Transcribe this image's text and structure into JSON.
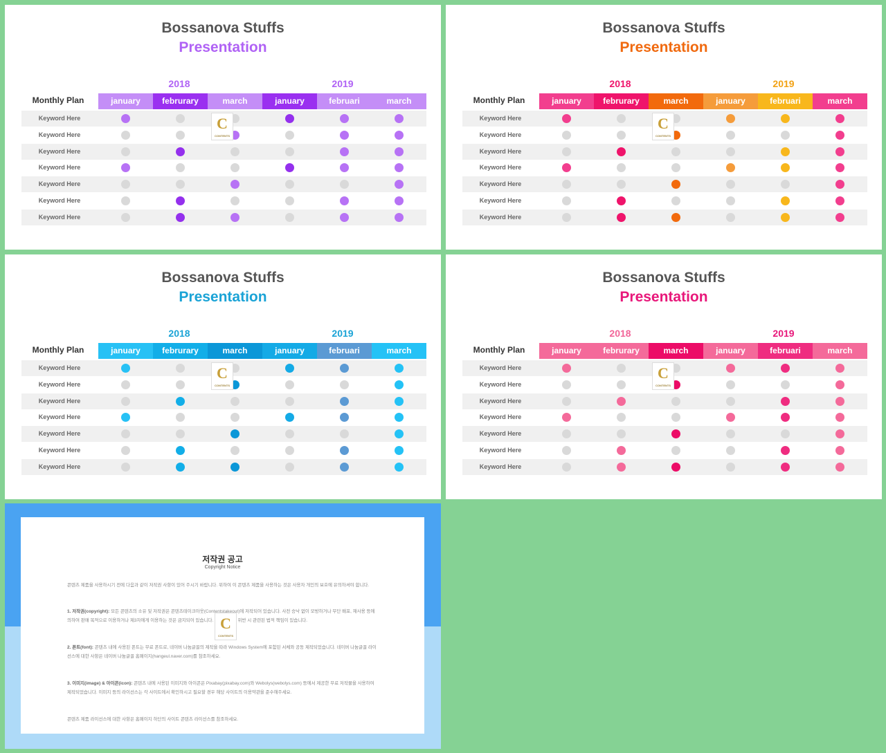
{
  "colors": {
    "bg": "#85d294",
    "gray_dot": "#d9d9d9",
    "purple": {
      "accent": "#b062f5",
      "hdr": [
        "#c48ef7",
        "#9a30f0",
        "#c48ef7",
        "#9a30f0",
        "#c48ef7",
        "#c48ef7"
      ],
      "dot_a": "#b772f5",
      "dot_b": "#9430ed"
    },
    "orange": {
      "accent": "#f0690e",
      "hdr": [
        "#f23e8e",
        "#ef146b",
        "#f26a0d",
        "#f59c3b",
        "#f8b71c",
        "#f23e8e"
      ],
      "year2018": "#ef146b",
      "year2019": "#f2a214"
    },
    "blue": {
      "accent": "#1aa3d6",
      "hdr": [
        "#27c1f5",
        "#12aee8",
        "#0b97d8",
        "#14aae6",
        "#5b9ad4",
        "#24c2f6"
      ]
    },
    "pink": {
      "accent": "#e8177a",
      "hdr": [
        "#f46a9a",
        "#f46a9a",
        "#ec0c67",
        "#f46a9a",
        "#ef2c80",
        "#f46a9a"
      ],
      "year2018": "#f26599",
      "year2019": "#e8177a"
    }
  },
  "slides": [
    {
      "id": "purple",
      "title": "Bossanova Stuffs",
      "subtitle": "Presentation",
      "year1": "2018",
      "year2": "2019",
      "monthly_plan": "Monthly Plan",
      "months": [
        "january",
        "februrary",
        "march",
        "january",
        "februari",
        "march"
      ],
      "rows": [
        {
          "label": "Keyword Here",
          "dots": [
            "a",
            "g",
            "g",
            "b",
            "a",
            "a"
          ]
        },
        {
          "label": "Keyword Here",
          "dots": [
            "g",
            "g",
            "a",
            "g",
            "a",
            "a"
          ]
        },
        {
          "label": "Keyword Here",
          "dots": [
            "g",
            "b",
            "g",
            "g",
            "a",
            "a"
          ]
        },
        {
          "label": "Keyword Here",
          "dots": [
            "a",
            "g",
            "g",
            "b",
            "a",
            "a"
          ]
        },
        {
          "label": "Keyword Here",
          "dots": [
            "g",
            "g",
            "a",
            "g",
            "g",
            "a"
          ]
        },
        {
          "label": "Keyword Here",
          "dots": [
            "g",
            "b",
            "g",
            "g",
            "a",
            "a"
          ]
        },
        {
          "label": "Keyword Here",
          "dots": [
            "g",
            "b",
            "a",
            "g",
            "a",
            "a"
          ]
        }
      ]
    },
    {
      "id": "orange",
      "title": "Bossanova Stuffs",
      "subtitle": "Presentation",
      "year1": "2018",
      "year2": "2019",
      "monthly_plan": "Monthly Plan",
      "months": [
        "january",
        "februrary",
        "march",
        "january",
        "februari",
        "march"
      ],
      "rows": [
        {
          "label": "Keyword Here",
          "dots": [
            "c0",
            "g",
            "g",
            "c3",
            "c4",
            "c5"
          ]
        },
        {
          "label": "Keyword Here",
          "dots": [
            "g",
            "g",
            "c2",
            "g",
            "g",
            "c5"
          ]
        },
        {
          "label": "Keyword Here",
          "dots": [
            "g",
            "c1",
            "g",
            "g",
            "c4",
            "c5"
          ]
        },
        {
          "label": "Keyword Here",
          "dots": [
            "c0",
            "g",
            "g",
            "c3",
            "c4",
            "c5"
          ]
        },
        {
          "label": "Keyword Here",
          "dots": [
            "g",
            "g",
            "c2",
            "g",
            "g",
            "c5"
          ]
        },
        {
          "label": "Keyword Here",
          "dots": [
            "g",
            "c1",
            "g",
            "g",
            "c4",
            "c5"
          ]
        },
        {
          "label": "Keyword Here",
          "dots": [
            "g",
            "c1",
            "c2",
            "g",
            "c4",
            "c5"
          ]
        }
      ]
    },
    {
      "id": "blue",
      "title": "Bossanova Stuffs",
      "subtitle": "Presentation",
      "year1": "2018",
      "year2": "2019",
      "monthly_plan": "Monthly Plan",
      "months": [
        "january",
        "februrary",
        "march",
        "january",
        "februari",
        "march"
      ],
      "rows": [
        {
          "label": "Keyword Here",
          "dots": [
            "c0",
            "g",
            "g",
            "c3",
            "c4",
            "c5"
          ]
        },
        {
          "label": "Keyword Here",
          "dots": [
            "g",
            "g",
            "c2",
            "g",
            "g",
            "c5"
          ]
        },
        {
          "label": "Keyword Here",
          "dots": [
            "g",
            "c1",
            "g",
            "g",
            "c4",
            "c5"
          ]
        },
        {
          "label": "Keyword Here",
          "dots": [
            "c0",
            "g",
            "g",
            "c3",
            "c4",
            "c5"
          ]
        },
        {
          "label": "Keyword Here",
          "dots": [
            "g",
            "g",
            "c2",
            "g",
            "g",
            "c5"
          ]
        },
        {
          "label": "Keyword Here",
          "dots": [
            "g",
            "c1",
            "g",
            "g",
            "c4",
            "c5"
          ]
        },
        {
          "label": "Keyword Here",
          "dots": [
            "g",
            "c1",
            "c2",
            "g",
            "c4",
            "c5"
          ]
        }
      ]
    },
    {
      "id": "pink",
      "title": "Bossanova Stuffs",
      "subtitle": "Presentation",
      "year1": "2018",
      "year2": "2019",
      "monthly_plan": "Monthly Plan",
      "months": [
        "january",
        "februrary",
        "march",
        "january",
        "februari",
        "march"
      ],
      "rows": [
        {
          "label": "Keyword Here",
          "dots": [
            "c0",
            "g",
            "g",
            "c3",
            "c4",
            "c5"
          ]
        },
        {
          "label": "Keyword Here",
          "dots": [
            "g",
            "g",
            "c2",
            "g",
            "g",
            "c5"
          ]
        },
        {
          "label": "Keyword Here",
          "dots": [
            "g",
            "c1",
            "g",
            "g",
            "c4",
            "c5"
          ]
        },
        {
          "label": "Keyword Here",
          "dots": [
            "c0",
            "g",
            "g",
            "c3",
            "c4",
            "c5"
          ]
        },
        {
          "label": "Keyword Here",
          "dots": [
            "g",
            "g",
            "c2",
            "g",
            "g",
            "c5"
          ]
        },
        {
          "label": "Keyword Here",
          "dots": [
            "g",
            "c1",
            "g",
            "g",
            "c4",
            "c5"
          ]
        },
        {
          "label": "Keyword Here",
          "dots": [
            "g",
            "c1",
            "c2",
            "g",
            "c4",
            "c5"
          ]
        }
      ]
    }
  ],
  "logo": {
    "letter": "C",
    "text": "CONTENTS"
  },
  "notice": {
    "title": "저작권 공고",
    "subtitle": "Copyright Notice",
    "p0": "콘텐츠 제품을 사용하시기 전에 다음과 같이 저작권 사항이 있어 주시기 바랍니다. 위하여 이 콘텐츠 제품을 사용하는 것은 사용자 개인의 보호에 유의하셔야 합니다.",
    "p1_head": "1. 저작권(copyright):",
    "p1": "모든 콘텐츠의 소유 및 저작권은 콘텐츠테이크아웃(Contentstakeout)에 저작되어 있습니다. 사전 승낙 없이 모방하거나 무단 배포, 재사용 등에 의하여 판매 목적으로 이용하거나 제3자에게 이용하는 것은 금지되어 있습니다. 이러한 규정 위반 시 관련된 법적 책임이 있습니다.",
    "p2_head": "2. 폰트(font):",
    "p2": "콘텐츠 내에 사용된 폰트는 무료 폰트로, 네이버 나눔글꼴의 제작을 따라 Windows System에 포함된 서체와 공동 제작되었습니다. 네이버 나눔글꼴 라이선스에 대한 사항은 네이버 나눔글꼴 홈페이지(hangeul.naver.com)를 참조하세요.",
    "p3_head": "3. 이미지(image) & 아이콘(icon):",
    "p3": "콘텐츠 내에 사용된 이미지와 아이콘은 Pixabay(pixabay.com)와 Webolys(webolys.com) 등에서 제공한 무료 저작물을 사용하여 제작되었습니다. 이미지 등의 라이선스는 각 사이트에서 확인하시고 필요할 경우 해당 사이트의 이용약관을 준수해주세요.",
    "p4": "콘텐츠 제품 라이선스에 대한 사항은 홈페이지 하단의 사이트 콘텐츠 라이선스를 참조하세요."
  }
}
